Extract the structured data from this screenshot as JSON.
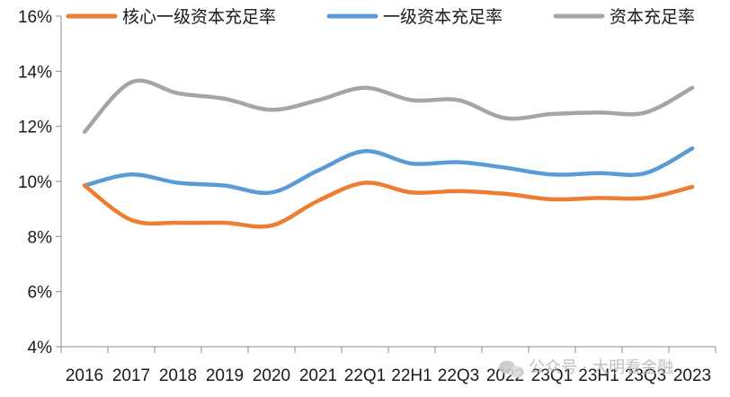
{
  "chart_data": {
    "type": "line",
    "categories": [
      "2016",
      "2017",
      "2018",
      "2019",
      "2020",
      "2021",
      "22Q1",
      "22H1",
      "22Q3",
      "2022",
      "23Q1",
      "23H1",
      "23Q3",
      "2023"
    ],
    "series": [
      {
        "name": "核心一级资本充足率",
        "color": "#ed7d31",
        "values": [
          9.85,
          8.6,
          8.5,
          8.5,
          8.4,
          9.3,
          9.95,
          9.6,
          9.65,
          9.55,
          9.35,
          9.4,
          9.4,
          9.8
        ]
      },
      {
        "name": "一级资本充足率",
        "color": "#5b9bd5",
        "values": [
          9.85,
          10.25,
          9.95,
          9.85,
          9.6,
          10.4,
          11.1,
          10.65,
          10.7,
          10.5,
          10.25,
          10.3,
          10.3,
          11.2
        ]
      },
      {
        "name": "资本充足率",
        "color": "#a5a5a5",
        "values": [
          11.8,
          13.6,
          13.2,
          13.0,
          12.6,
          12.95,
          13.4,
          12.95,
          12.95,
          12.3,
          12.45,
          12.5,
          12.5,
          13.4
        ]
      }
    ],
    "y_ticks": [
      "4%",
      "6%",
      "8%",
      "10%",
      "12%",
      "14%",
      "16%"
    ],
    "y_tick_values": [
      4,
      6,
      8,
      10,
      12,
      14,
      16
    ],
    "ylim": [
      4,
      16
    ],
    "grid": false,
    "legend_position": "top"
  },
  "watermark": {
    "text": "公众号 · 大明看金融",
    "icon": "wechat-icon"
  }
}
